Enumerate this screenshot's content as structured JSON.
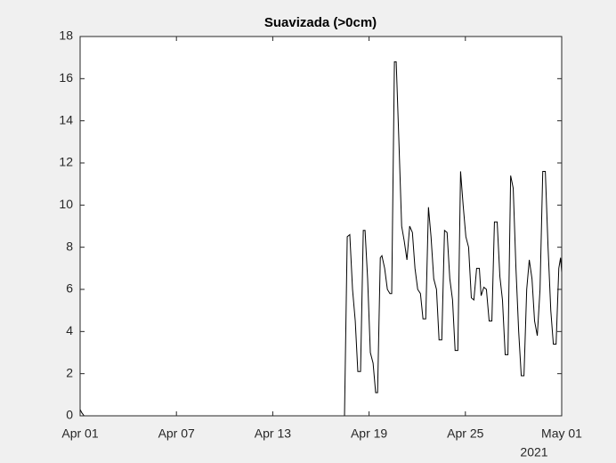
{
  "chart_data": {
    "type": "line",
    "title": "Suavizada (>0cm)",
    "x": [
      0,
      0.1,
      0.25,
      16.45,
      16.47,
      16.64,
      16.8,
      16.97,
      17.14,
      17.3,
      17.47,
      17.64,
      17.75,
      17.91,
      18.08,
      18.25,
      18.41,
      18.53,
      18.7,
      18.8,
      18.97,
      19.14,
      19.3,
      19.41,
      19.58,
      19.69,
      19.86,
      20.03,
      20.19,
      20.36,
      20.53,
      20.7,
      20.86,
      21.03,
      21.2,
      21.36,
      21.53,
      21.7,
      21.86,
      22.03,
      22.2,
      22.36,
      22.53,
      22.7,
      22.86,
      23.03,
      23.2,
      23.36,
      23.53,
      23.7,
      23.86,
      24.03,
      24.2,
      24.37,
      24.53,
      24.7,
      24.87,
      24.98,
      25.15,
      25.31,
      25.48,
      25.65,
      25.81,
      25.98,
      26.15,
      26.31,
      26.48,
      26.65,
      26.82,
      26.98,
      27.15,
      27.32,
      27.48,
      27.65,
      27.82,
      27.98,
      28.15,
      28.31,
      28.48,
      28.65,
      28.82,
      28.98,
      29.15,
      29.32,
      29.48,
      29.65,
      29.82,
      29.93,
      30
    ],
    "series": [
      {
        "color": "#000000",
        "values": [
          0.3,
          0.15,
          0,
          0,
          0,
          8.5,
          8.6,
          6,
          4.5,
          2.1,
          2.1,
          8.8,
          8.8,
          6.5,
          3,
          2.5,
          1.1,
          1.1,
          7.5,
          7.6,
          7,
          6,
          5.8,
          5.8,
          16.8,
          16.8,
          13,
          9,
          8.3,
          7.4,
          9,
          8.7,
          7,
          6,
          5.8,
          4.6,
          4.6,
          9.9,
          8.5,
          6.5,
          6,
          3.6,
          3.6,
          8.8,
          8.7,
          6.5,
          5.5,
          3.1,
          3.1,
          11.6,
          10,
          8.5,
          8,
          5.6,
          5.5,
          7,
          7,
          5.7,
          6.1,
          6,
          4.5,
          4.5,
          9.2,
          9.2,
          6.6,
          5.5,
          2.9,
          2.9,
          11.4,
          10.8,
          7,
          4,
          1.9,
          1.9,
          6,
          7.4,
          6.5,
          4.5,
          3.8,
          6,
          11.6,
          11.6,
          8,
          5,
          3.4,
          3.4,
          7,
          7.5,
          6.8
        ]
      }
    ],
    "xlim": [
      0,
      30
    ],
    "xticks": [
      {
        "value": 0,
        "label": "Apr 01"
      },
      {
        "value": 6,
        "label": "Apr 07"
      },
      {
        "value": 12,
        "label": "Apr 13"
      },
      {
        "value": 18,
        "label": "Apr 19"
      },
      {
        "value": 24,
        "label": "Apr 25"
      },
      {
        "value": 30,
        "label": "May 01"
      }
    ],
    "x_secondary_label": "2021",
    "ylim": [
      0,
      18
    ],
    "yticks": [
      0,
      2,
      4,
      6,
      8,
      10,
      12,
      14,
      16,
      18
    ]
  }
}
